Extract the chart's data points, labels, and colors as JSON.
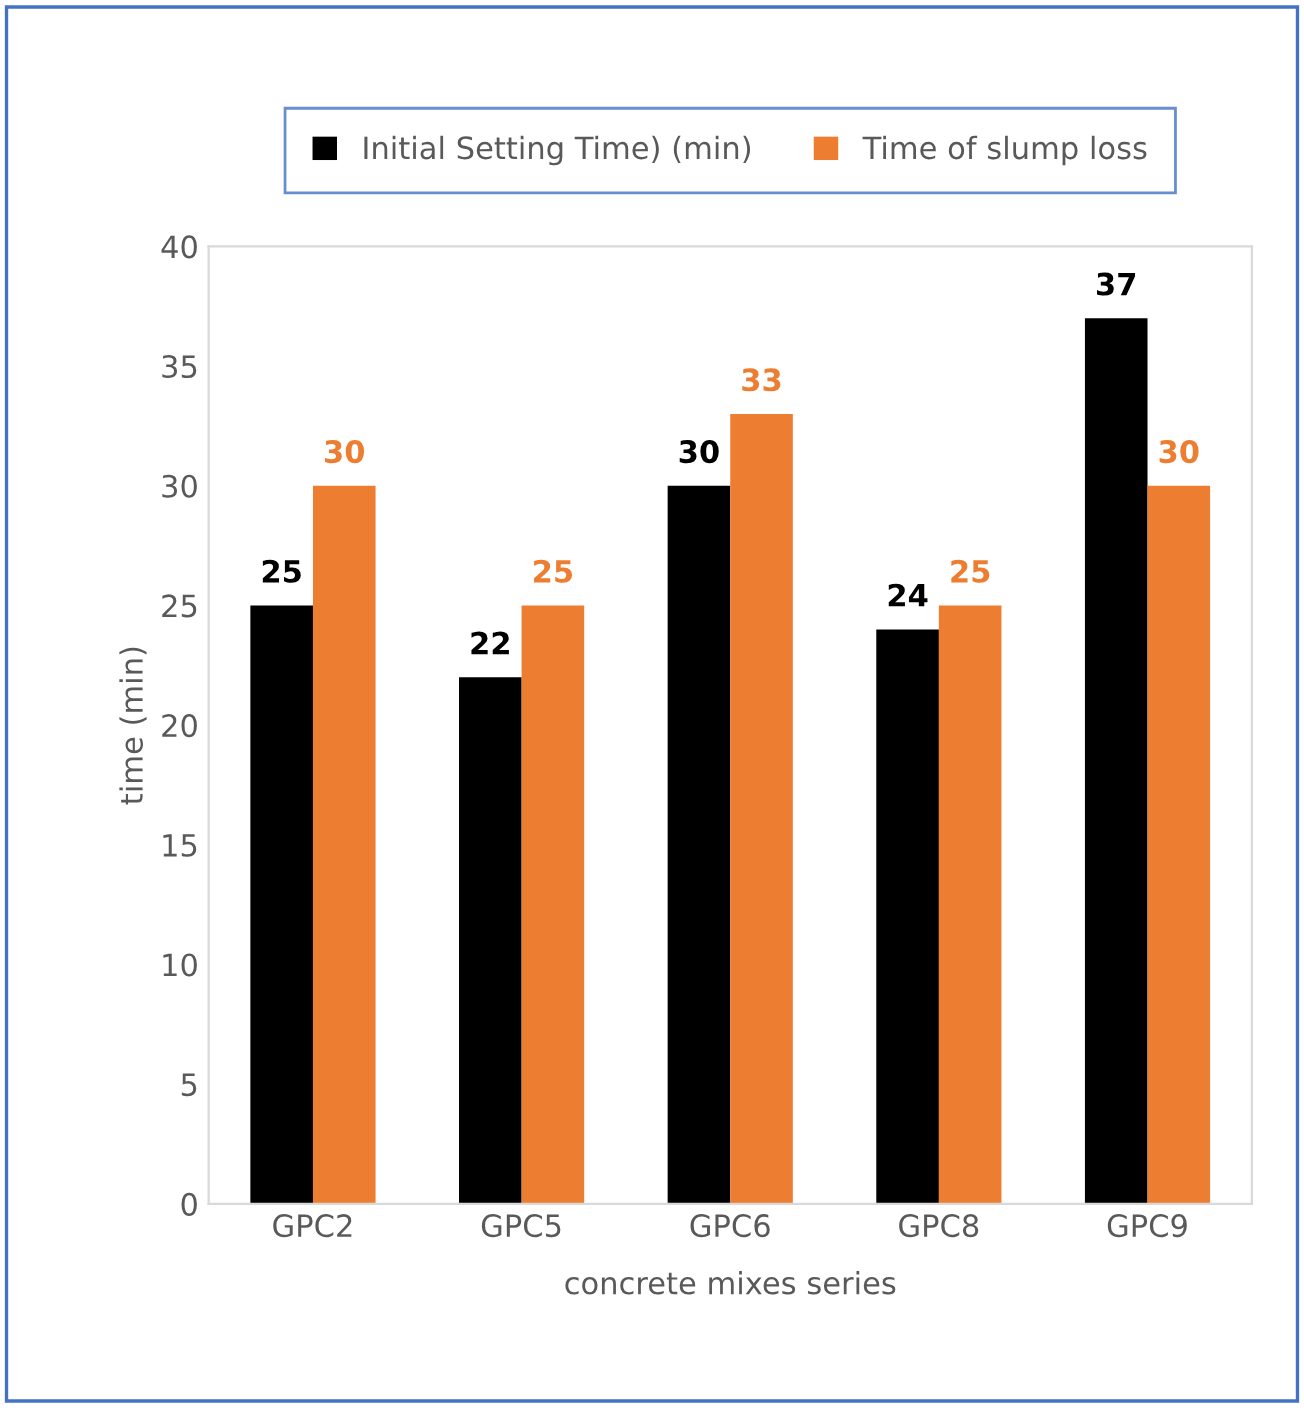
{
  "chart_data": {
    "type": "bar",
    "xlabel": "concrete mixes series",
    "ylabel": "time (min)",
    "categories": [
      "GPC2",
      "GPC5",
      "GPC6",
      "GPC8",
      "GPC9"
    ],
    "series": [
      {
        "name": "Initial Setting Time) (min)",
        "color": "#000000",
        "values": [
          25,
          22,
          30,
          24,
          37
        ]
      },
      {
        "name": "Time of slump loss",
        "color": "#ed7d31",
        "values": [
          30,
          25,
          33,
          25,
          30
        ]
      }
    ],
    "ylim": [
      0,
      40
    ],
    "yticks": [
      0,
      5,
      10,
      15,
      20,
      25,
      30,
      35,
      40
    ],
    "grid": false,
    "legend": "top",
    "data_labels": true
  }
}
